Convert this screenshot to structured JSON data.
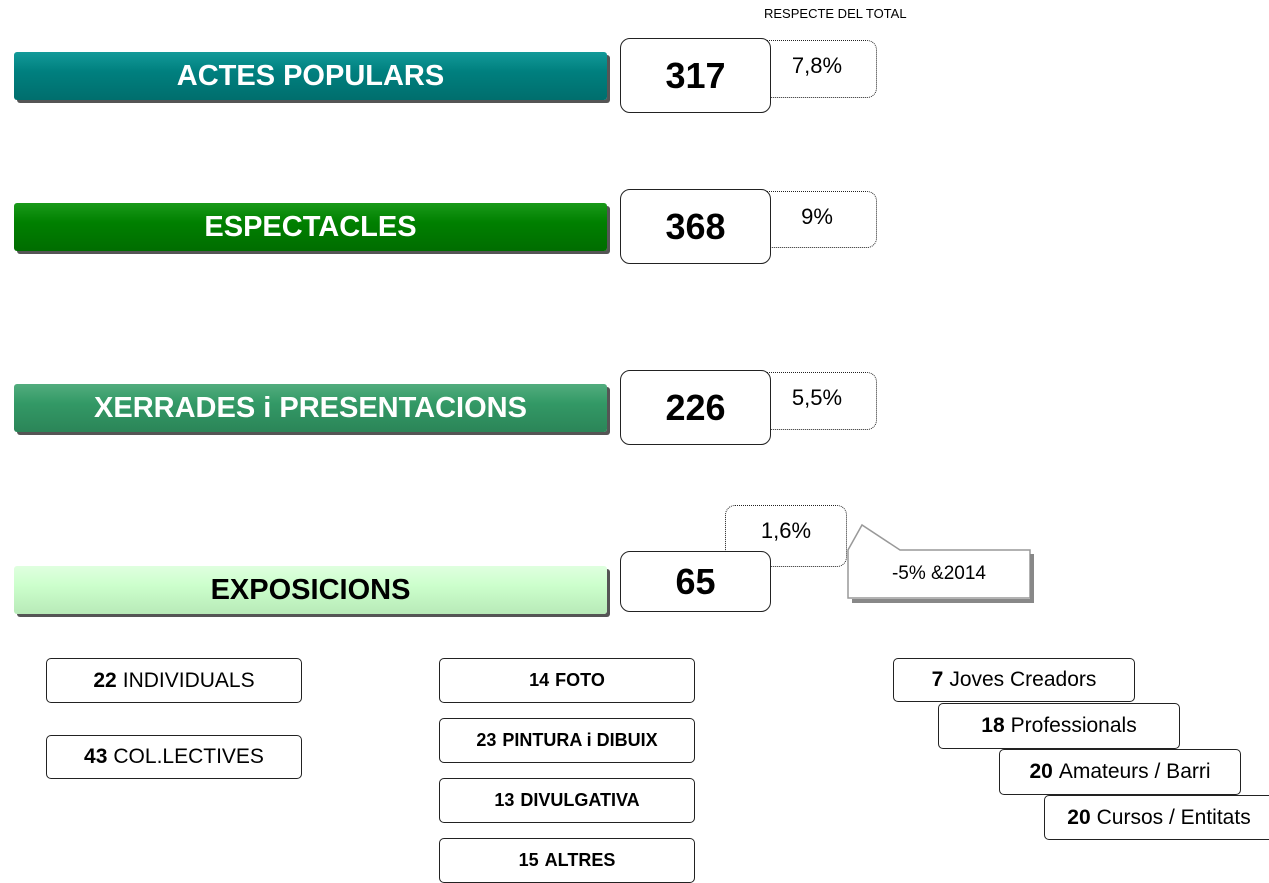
{
  "header": {
    "note": "RESPECTE DEL TOTAL"
  },
  "categories": [
    {
      "label": "ACTES POPULARS",
      "count": "317",
      "percent": "7,8%"
    },
    {
      "label": "ESPECTACLES",
      "count": "368",
      "percent": "9%"
    },
    {
      "label": "XERRADES i PRESENTACIONS",
      "count": "226",
      "percent": "5,5%"
    },
    {
      "label": "EXPOSICIONS",
      "count": "65",
      "percent": "1,6%"
    }
  ],
  "callout": "-5% &2014",
  "groups": [
    [
      {
        "count": "22",
        "label": "INDIVIDUALS"
      },
      {
        "count": "43",
        "label": "COL.LECTIVES"
      }
    ],
    [
      {
        "count": "14",
        "label": "FOTO"
      },
      {
        "count": "23",
        "label": "PINTURA i DIBUIX"
      },
      {
        "count": "13",
        "label": "DIVULGATIVA"
      },
      {
        "count": "15",
        "label": "ALTRES"
      }
    ],
    [
      {
        "count": "7",
        "label": "Joves Creadors"
      },
      {
        "count": "18",
        "label": "Professionals"
      },
      {
        "count": "20",
        "label": "Amateurs / Barri"
      },
      {
        "count": "20",
        "label": "Cursos / Entitats"
      }
    ]
  ]
}
